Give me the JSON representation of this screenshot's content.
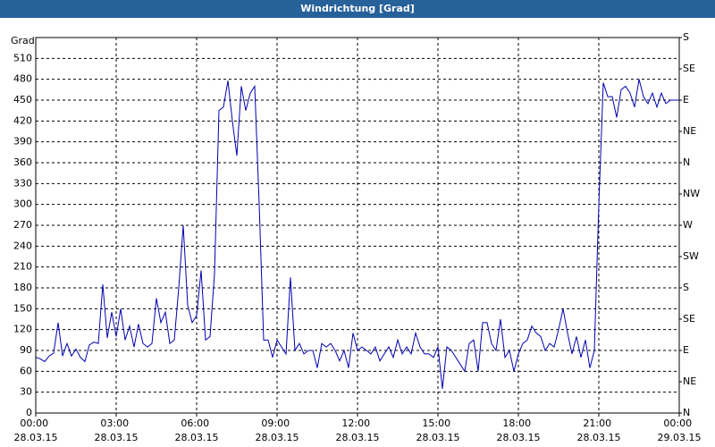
{
  "chart_data": {
    "type": "line",
    "title": "Windrichtung [Grad]",
    "y_label": "Grad",
    "xlim": [
      0,
      1440
    ],
    "xticks": [
      {
        "value": 0,
        "label": "00:00 28.03.15"
      },
      {
        "value": 180,
        "label": "03:00 28.03.15"
      },
      {
        "value": 360,
        "label": "06:00 28.03.15"
      },
      {
        "value": 540,
        "label": "09:00 28.03.15"
      },
      {
        "value": 720,
        "label": "12:00 28.03.15"
      },
      {
        "value": 900,
        "label": "15:00 28.03.15"
      },
      {
        "value": 1080,
        "label": "18:00 28.03.15"
      },
      {
        "value": 1260,
        "label": "21:00 28.03.15"
      },
      {
        "value": 1440,
        "label": "00:00 29.03.15"
      }
    ],
    "ylim": [
      0,
      540
    ],
    "yticks": [
      0,
      30,
      60,
      90,
      120,
      150,
      180,
      210,
      240,
      270,
      300,
      330,
      360,
      390,
      420,
      450,
      480,
      510
    ],
    "y2lim": [
      0,
      540
    ],
    "y2ticks": [
      {
        "value": 0,
        "label": "N"
      },
      {
        "value": 45,
        "label": "NE"
      },
      {
        "value": 90,
        "label": "E"
      },
      {
        "value": 135,
        "label": "SE"
      },
      {
        "value": 180,
        "label": "S"
      },
      {
        "value": 225,
        "label": "SW"
      },
      {
        "value": 270,
        "label": "W"
      },
      {
        "value": 315,
        "label": "NW"
      },
      {
        "value": 360,
        "label": "N"
      },
      {
        "value": 405,
        "label": "NE"
      },
      {
        "value": 450,
        "label": "E"
      },
      {
        "value": 495,
        "label": "SE"
      },
      {
        "value": 540,
        "label": "S"
      }
    ],
    "grid": true,
    "x": [
      0,
      10,
      20,
      30,
      40,
      50,
      60,
      70,
      80,
      90,
      100,
      110,
      120,
      130,
      140,
      150,
      160,
      170,
      180,
      190,
      200,
      210,
      220,
      230,
      240,
      250,
      260,
      270,
      280,
      290,
      300,
      310,
      320,
      330,
      340,
      350,
      360,
      370,
      380,
      390,
      400,
      410,
      420,
      430,
      440,
      450,
      460,
      470,
      480,
      490,
      500,
      510,
      520,
      530,
      540,
      550,
      560,
      570,
      580,
      590,
      600,
      610,
      620,
      630,
      640,
      650,
      660,
      670,
      680,
      690,
      700,
      710,
      720,
      730,
      740,
      750,
      760,
      770,
      780,
      790,
      800,
      810,
      820,
      830,
      840,
      850,
      860,
      870,
      880,
      890,
      900,
      910,
      920,
      930,
      940,
      950,
      960,
      970,
      980,
      990,
      1000,
      1010,
      1020,
      1030,
      1040,
      1050,
      1060,
      1070,
      1080,
      1090,
      1100,
      1110,
      1120,
      1130,
      1140,
      1150,
      1160,
      1170,
      1180,
      1190,
      1200,
      1210,
      1220,
      1230,
      1240,
      1250,
      1260,
      1270,
      1280,
      1290,
      1300,
      1310,
      1320,
      1330,
      1340,
      1350,
      1360,
      1370,
      1380,
      1390,
      1400,
      1410,
      1420,
      1430,
      1440
    ],
    "series": [
      {
        "name": "Windrichtung",
        "color": "#0000b0",
        "values": [
          80,
          78,
          74,
          82,
          86,
          130,
          82,
          100,
          82,
          92,
          80,
          74,
          98,
          102,
          100,
          185,
          108,
          145,
          110,
          150,
          105,
          125,
          95,
          128,
          100,
          95,
          100,
          165,
          130,
          145,
          100,
          105,
          180,
          270,
          155,
          130,
          140,
          205,
          105,
          110,
          200,
          435,
          440,
          478,
          420,
          370,
          470,
          435,
          460,
          470,
          300,
          105,
          105,
          80,
          105,
          95,
          85,
          195,
          90,
          100,
          85,
          90,
          90,
          65,
          100,
          95,
          100,
          90,
          75,
          90,
          65,
          115,
          90,
          95,
          90,
          85,
          95,
          75,
          85,
          95,
          80,
          105,
          85,
          95,
          85,
          115,
          95,
          85,
          85,
          80,
          95,
          35,
          95,
          90,
          80,
          70,
          60,
          100,
          105,
          60,
          130,
          130,
          100,
          90,
          135,
          80,
          90,
          60,
          85,
          100,
          105,
          125,
          115,
          110,
          90,
          100,
          95,
          120,
          150,
          115,
          85,
          110,
          80,
          105,
          65,
          90,
          300,
          475,
          455,
          455,
          425,
          465,
          470,
          460,
          440,
          480,
          455,
          445,
          460,
          440,
          460,
          445,
          450,
          450,
          450
        ]
      }
    ]
  }
}
